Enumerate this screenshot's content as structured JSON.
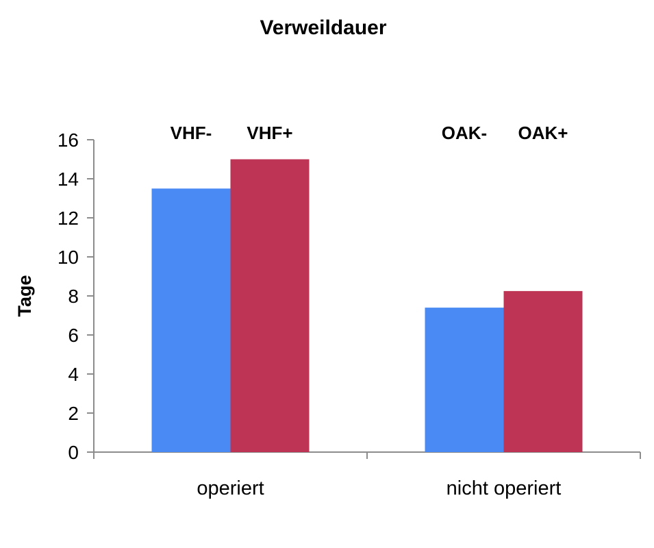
{
  "chart_data": {
    "type": "bar",
    "title": "Verweildauer",
    "ylabel": "Tage",
    "xlabel": "",
    "ylim": [
      0,
      16
    ],
    "yticks": [
      0,
      2,
      4,
      6,
      8,
      10,
      12,
      14,
      16
    ],
    "grid": false,
    "categories": [
      "operiert",
      "nicht operiert"
    ],
    "colors": [
      "#4a8af4",
      "#be3455"
    ],
    "bars": [
      {
        "category": "operiert",
        "label": "VHF-",
        "value": 13.5,
        "color": "#4a8af4"
      },
      {
        "category": "operiert",
        "label": "VHF+",
        "value": 15.0,
        "color": "#be3455"
      },
      {
        "category": "nicht operiert",
        "label": "OAK-",
        "value": 7.4,
        "color": "#4a8af4"
      },
      {
        "category": "nicht operiert",
        "label": "OAK+",
        "value": 8.25,
        "color": "#be3455"
      }
    ]
  }
}
